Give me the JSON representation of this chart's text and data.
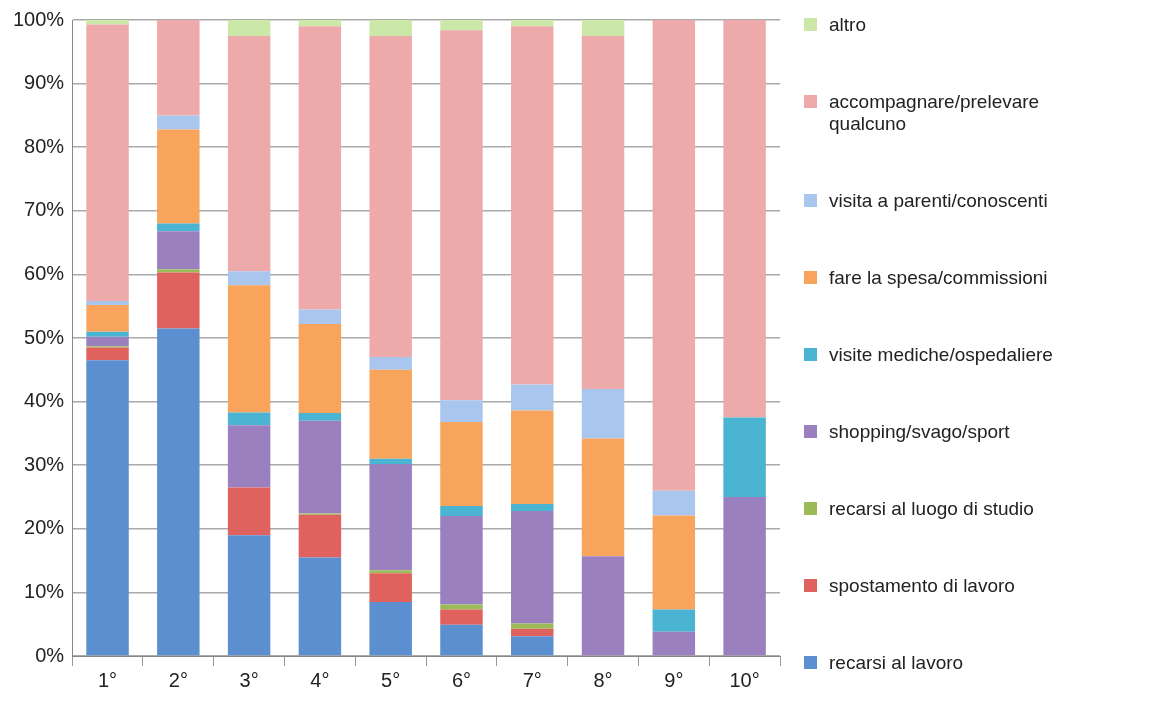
{
  "chart_data": {
    "type": "bar",
    "stacked": true,
    "categories": [
      "1°",
      "2°",
      "3°",
      "4°",
      "5°",
      "6°",
      "7°",
      "8°",
      "9°",
      "10°"
    ],
    "ylim": [
      0,
      100
    ],
    "yticks": [
      {
        "value": 0,
        "label": "0%"
      },
      {
        "value": 10,
        "label": "10%"
      },
      {
        "value": 20,
        "label": "20%"
      },
      {
        "value": 30,
        "label": "30%"
      },
      {
        "value": 40,
        "label": "40%"
      },
      {
        "value": 50,
        "label": "50%"
      },
      {
        "value": 60,
        "label": "60%"
      },
      {
        "value": 70,
        "label": "70%"
      },
      {
        "value": 80,
        "label": "80%"
      },
      {
        "value": 90,
        "label": "90%"
      },
      {
        "value": 100,
        "label": "100%"
      }
    ],
    "grid": "y",
    "legend": "right",
    "series": [
      {
        "name": "recarsi al lavoro",
        "color": "#5b8fd0",
        "values": [
          46.5,
          51.5,
          19.0,
          15.5,
          8.5,
          4.9,
          3.1,
          0,
          0,
          0
        ]
      },
      {
        "name": "spostamento di lavoro",
        "color": "#e0625e",
        "values": [
          2.0,
          8.8,
          7.5,
          6.7,
          4.5,
          2.4,
          1.2,
          0,
          0,
          0
        ]
      },
      {
        "name": "recarsi al luogo di studio",
        "color": "#9bbb59",
        "values": [
          0.2,
          0.5,
          0,
          0.2,
          0.5,
          0.8,
          0.8,
          0,
          0,
          0
        ]
      },
      {
        "name": "shopping/svago/sport",
        "color": "#9b80c0",
        "values": [
          1.5,
          6.0,
          9.8,
          14.6,
          16.7,
          13.9,
          17.7,
          15.7,
          3.8,
          25.0
        ]
      },
      {
        "name": "visite mediche/ospedaliere",
        "color": "#4bb4d2",
        "values": [
          0.8,
          1.2,
          2.0,
          1.2,
          0.8,
          1.6,
          1.1,
          0,
          3.5,
          12.5
        ]
      },
      {
        "name": "fare la spesa/commissioni",
        "color": "#f8a45c",
        "values": [
          4.2,
          14.8,
          20.0,
          14.0,
          14.0,
          13.2,
          14.7,
          18.5,
          14.8,
          0
        ]
      },
      {
        "name": "visita a parenti/conoscenti",
        "color": "#a9c6ee",
        "values": [
          0.6,
          2.2,
          2.2,
          2.3,
          2.0,
          3.4,
          4.1,
          7.8,
          3.9,
          0
        ]
      },
      {
        "name": "accompagnare/prelevare qualcuno",
        "color": "#eeaaaa",
        "values": [
          43.5,
          15.0,
          37.0,
          44.5,
          50.5,
          58.2,
          56.3,
          55.5,
          74.0,
          62.5
        ]
      },
      {
        "name": "altro",
        "color": "#cbe8a8",
        "values": [
          0.7,
          0,
          2.5,
          1.0,
          2.5,
          1.6,
          1.0,
          2.5,
          0,
          0
        ]
      }
    ]
  }
}
